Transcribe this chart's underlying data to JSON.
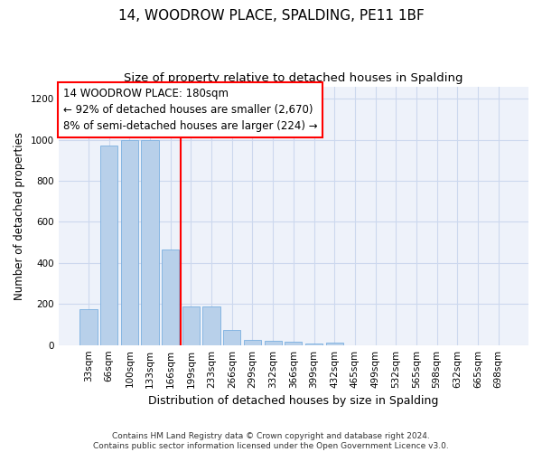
{
  "title1": "14, WOODROW PLACE, SPALDING, PE11 1BF",
  "title2": "Size of property relative to detached houses in Spalding",
  "xlabel": "Distribution of detached houses by size in Spalding",
  "ylabel": "Number of detached properties",
  "categories": [
    "33sqm",
    "66sqm",
    "100sqm",
    "133sqm",
    "166sqm",
    "199sqm",
    "233sqm",
    "266sqm",
    "299sqm",
    "332sqm",
    "366sqm",
    "399sqm",
    "432sqm",
    "465sqm",
    "499sqm",
    "532sqm",
    "565sqm",
    "598sqm",
    "632sqm",
    "665sqm",
    "698sqm"
  ],
  "values": [
    175,
    970,
    1000,
    1000,
    465,
    190,
    190,
    75,
    25,
    20,
    15,
    8,
    13,
    0,
    0,
    0,
    0,
    0,
    0,
    0,
    0
  ],
  "bar_color": "#b8d0ea",
  "bar_edge_color": "#7aafe0",
  "grid_color": "#ccd8ee",
  "background_color": "#eef2fa",
  "red_line_x": 4.5,
  "annotation_lines": [
    "14 WOODROW PLACE: 180sqm",
    "← 92% of detached houses are smaller (2,670)",
    "8% of semi-detached houses are larger (224) →"
  ],
  "ylim": [
    0,
    1260
  ],
  "yticks": [
    0,
    200,
    400,
    600,
    800,
    1000,
    1200
  ],
  "footnote": "Contains HM Land Registry data © Crown copyright and database right 2024.\nContains public sector information licensed under the Open Government Licence v3.0.",
  "title1_fontsize": 11,
  "title2_fontsize": 9.5,
  "xlabel_fontsize": 9,
  "ylabel_fontsize": 8.5,
  "tick_fontsize": 7.5,
  "annot_fontsize": 8.5,
  "footnote_fontsize": 6.5
}
